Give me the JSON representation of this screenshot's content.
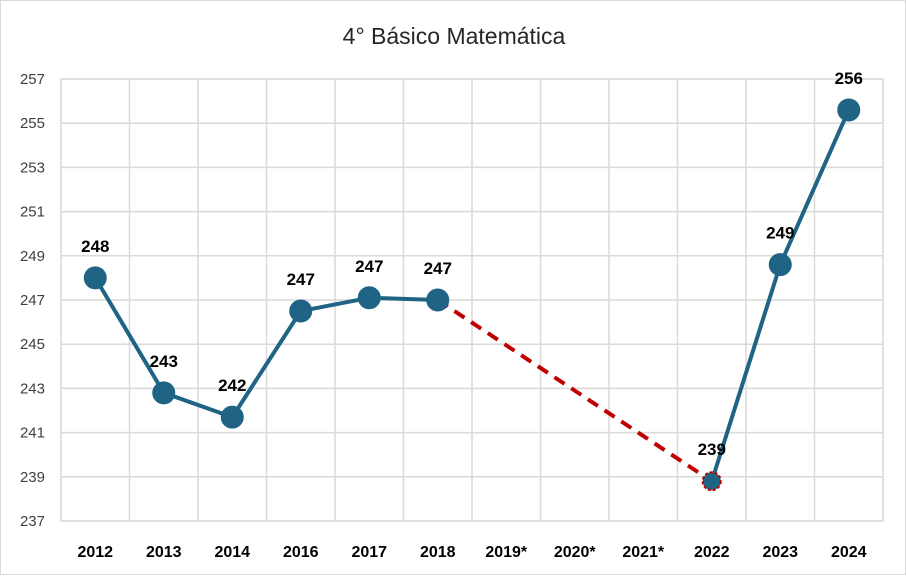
{
  "chart_data": {
    "type": "line",
    "title": "4° Básico Matemática",
    "xlabel": "",
    "ylabel": "",
    "categories": [
      "2012",
      "2013",
      "2014",
      "2016",
      "2017",
      "2018",
      "2019*",
      "2020*",
      "2021*",
      "2022",
      "2023",
      "2024"
    ],
    "ylim": [
      237,
      257
    ],
    "yticks": [
      "237",
      "239",
      "241",
      "243",
      "245",
      "247",
      "249",
      "251",
      "253",
      "255",
      "257"
    ],
    "grid": true,
    "legend": "none",
    "series": [
      {
        "values": [
          248.0,
          242.8,
          241.7,
          246.5,
          247.1,
          247.0,
          null,
          null,
          null,
          238.8,
          248.6,
          255.6
        ],
        "labels": [
          "248",
          "243",
          "242",
          "247",
          "247",
          "247",
          "",
          "",
          "",
          "239",
          "249",
          "256"
        ],
        "color": "#1f6385"
      }
    ],
    "gap_connector": {
      "from": "2018",
      "to": "2022",
      "style": "dashed",
      "color": "#c00000"
    }
  }
}
